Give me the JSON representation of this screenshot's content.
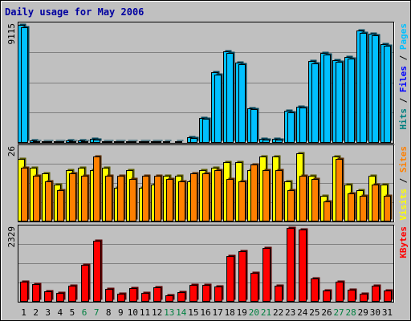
{
  "chart_data": [
    {
      "type": "bar",
      "panel": "hits",
      "title": "Daily usage for May 2006",
      "ymax_label": "9115",
      "ylim": [
        0,
        9115
      ],
      "categories": [
        "1",
        "2",
        "3",
        "4",
        "5",
        "6",
        "7",
        "8",
        "9",
        "10",
        "11",
        "12",
        "13",
        "14",
        "15",
        "16",
        "17",
        "18",
        "19",
        "20",
        "21",
        "22",
        "23",
        "24",
        "25",
        "26",
        "27",
        "28",
        "29",
        "30",
        "31"
      ],
      "weekend_days": [
        "6",
        "7",
        "13",
        "14",
        "20",
        "21",
        "27",
        "28"
      ],
      "legend": [
        "Pages",
        "Files",
        "Hits"
      ],
      "legend_colors": [
        "#00c0ff",
        "#0000ff",
        "#008080"
      ],
      "series": [
        {
          "name": "Hits",
          "color": "#00c0ff",
          "values": [
            9115,
            180,
            150,
            140,
            170,
            160,
            300,
            120,
            130,
            140,
            130,
            120,
            110,
            100,
            440,
            1940,
            5450,
            7060,
            6190,
            2670,
            280,
            280,
            2460,
            2800,
            6320,
            6970,
            6370,
            6640,
            8650,
            8440,
            7630
          ]
        },
        {
          "name": "Files",
          "color": "#00c0ff",
          "values": [
            8950,
            150,
            120,
            110,
            140,
            130,
            240,
            100,
            100,
            110,
            100,
            100,
            90,
            80,
            380,
            1850,
            5300,
            6950,
            6100,
            2580,
            230,
            230,
            2380,
            2720,
            6150,
            6800,
            6250,
            6500,
            8520,
            8300,
            7520
          ]
        }
      ]
    },
    {
      "type": "bar",
      "panel": "visits",
      "ymax_label": "26",
      "ylim": [
        0,
        26
      ],
      "legend": [
        "Sites",
        "Visits"
      ],
      "legend_colors": [
        "#ff8000",
        "#ffff00"
      ],
      "series": [
        {
          "name": "Visits",
          "color": "#ffff00",
          "values": [
            22,
            19,
            17,
            13,
            18,
            19,
            18,
            19,
            12,
            18,
            12,
            13,
            16,
            16,
            14,
            18,
            19,
            21,
            21,
            18,
            23,
            23,
            14,
            24,
            16,
            9,
            23,
            13,
            11,
            16,
            13
          ]
        },
        {
          "name": "Sites",
          "color": "#ff8000",
          "values": [
            19,
            16,
            14,
            11,
            17,
            16,
            23,
            16,
            16,
            15,
            16,
            16,
            15,
            14,
            17,
            17,
            18,
            15,
            14,
            20,
            18,
            18,
            11,
            16,
            15,
            7,
            22,
            10,
            9,
            13,
            9
          ]
        }
      ]
    },
    {
      "type": "bar",
      "panel": "kbytes",
      "ymax_label": "2329",
      "ylim": [
        0,
        2329
      ],
      "legend": [
        "KBytes"
      ],
      "legend_colors": [
        "#ff0000"
      ],
      "series": [
        {
          "name": "KBytes",
          "color": "#ff0000",
          "values": [
            630,
            560,
            330,
            280,
            500,
            1160,
            1930,
            410,
            260,
            440,
            280,
            460,
            210,
            310,
            520,
            540,
            480,
            1440,
            1600,
            900,
            1700,
            510,
            2329,
            2270,
            740,
            350,
            630,
            390,
            250,
            510,
            350
          ]
        }
      ]
    }
  ]
}
